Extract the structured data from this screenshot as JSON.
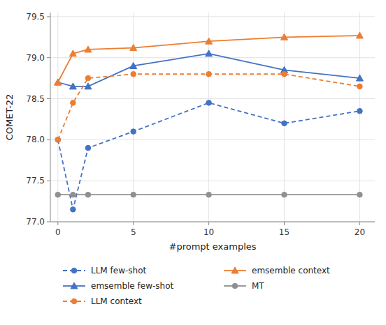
{
  "chart_data": {
    "type": "line",
    "x_label": "#prompt examples",
    "y_label": "COMET-22",
    "x": [
      0,
      1,
      2,
      5,
      10,
      15,
      20
    ],
    "series": [
      {
        "name": "LLM few-shot",
        "color": "#4472c4",
        "marker": "circle",
        "line_style": "dashed",
        "values": [
          78.0,
          77.15,
          77.9,
          78.1,
          78.45,
          78.2,
          78.35
        ]
      },
      {
        "name": "emsemble few-shot",
        "color": "#4472c4",
        "marker": "triangle",
        "line_style": "solid",
        "values": [
          78.7,
          78.65,
          78.65,
          78.9,
          79.05,
          78.85,
          78.75
        ]
      },
      {
        "name": "LLM context",
        "color": "#ed7d31",
        "marker": "circle",
        "line_style": "dashed",
        "values": [
          78.0,
          78.45,
          78.75,
          78.8,
          78.8,
          78.8,
          78.65
        ]
      },
      {
        "name": "emsemble context",
        "color": "#ed7d31",
        "marker": "triangle",
        "line_style": "solid",
        "values": [
          78.7,
          79.05,
          79.1,
          79.12,
          79.2,
          79.25,
          79.27
        ]
      },
      {
        "name": "MT",
        "color": "#909090",
        "marker": "circle",
        "line_style": "solid",
        "values": [
          77.33,
          77.33,
          77.33,
          77.33,
          77.33,
          77.33,
          77.33
        ]
      }
    ],
    "xlim": [
      -0.5,
      21
    ],
    "ylim": [
      77.0,
      79.55
    ],
    "xticks": [
      0,
      5,
      10,
      15,
      20
    ],
    "yticks": [
      {
        "value": 77.0,
        "label": "77.0"
      },
      77.5,
      {
        "value": 78.0,
        "label": "78.0"
      },
      78.5,
      {
        "value": 79.0,
        "label": "79.0"
      },
      79.5
    ],
    "grid": true,
    "legend": "bottom"
  }
}
